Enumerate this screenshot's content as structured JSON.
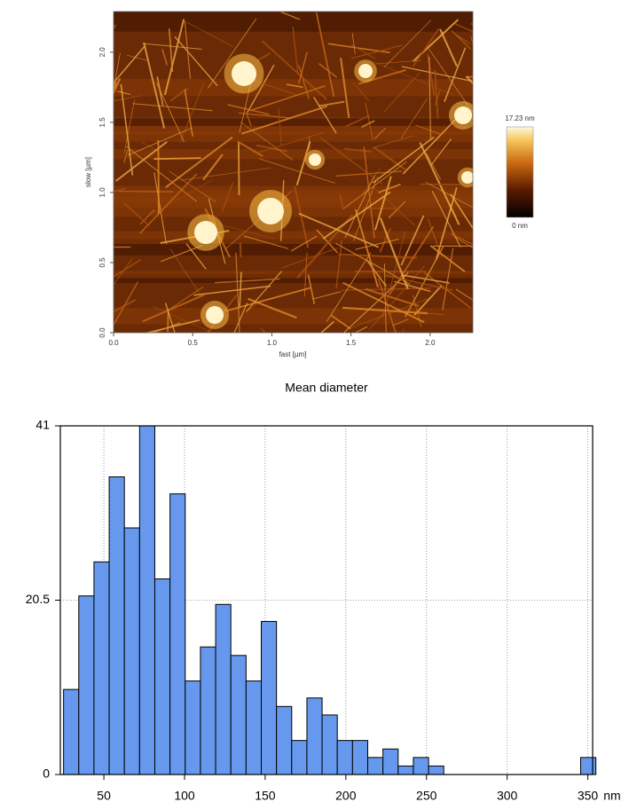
{
  "chart_data": [
    {
      "type": "image",
      "xlabel": "fast [µm]",
      "ylabel": "slow [µm]",
      "xlim": [
        0,
        2.27
      ],
      "ylim": [
        0,
        2.29
      ],
      "xticks": [
        {
          "value": 0,
          "label": "0.0"
        },
        {
          "value": 0.5,
          "label": "0.5"
        },
        {
          "value": 1,
          "label": "1.0"
        },
        {
          "value": 1.5,
          "label": "1.5"
        },
        {
          "value": 2,
          "label": "2.0"
        }
      ],
      "yticks": [
        {
          "value": 0,
          "label": "0.0"
        },
        {
          "value": 0.5,
          "label": "0.5"
        },
        {
          "value": 1,
          "label": "1.0"
        },
        {
          "value": 1.5,
          "label": "1.5"
        },
        {
          "value": 2,
          "label": "2.0"
        }
      ],
      "colorbar_max_label": "17.23 nm",
      "colorbar_min_label": "0 nm"
    },
    {
      "type": "histogram",
      "title": "Mean diameter",
      "x_unit": "nm",
      "color": "#6699ee",
      "bins": [
        25,
        34.43,
        43.86,
        53.29,
        62.71,
        72.14,
        81.57,
        91,
        100.43,
        109.86,
        119.29,
        128.71,
        138.14,
        147.57,
        157,
        166.43,
        175.86,
        185.29,
        194.71,
        204.14,
        213.57,
        223,
        232.43,
        241.86,
        251.29,
        260.71,
        270.14,
        279.57,
        289,
        298.43,
        307.86,
        317.29,
        326.71,
        336.14,
        345.57,
        355
      ],
      "values": [
        10,
        21,
        25,
        35,
        29,
        41,
        23,
        33,
        11,
        15,
        20,
        14,
        11,
        18,
        8,
        4,
        9,
        7,
        4,
        4,
        2,
        3,
        1,
        2,
        1,
        0,
        0,
        0,
        0,
        0,
        0,
        0,
        0,
        0,
        2
      ],
      "xlim": [
        23,
        353
      ],
      "xticks": [
        50,
        100,
        150,
        200,
        250,
        300,
        350
      ],
      "ylim": [
        0,
        41
      ],
      "yticks": [
        0,
        20.5,
        41
      ],
      "grid": true
    }
  ]
}
